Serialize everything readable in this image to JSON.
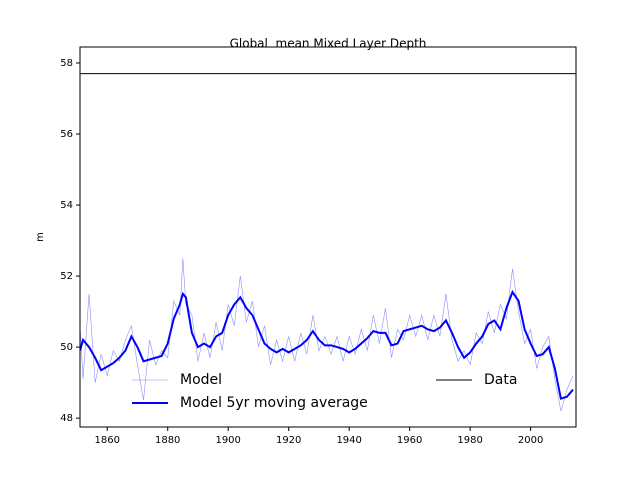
{
  "chart_data": {
    "type": "line",
    "title": "Global  mean Mixed Layer Depth",
    "y_label": "m",
    "xlim": [
      1851,
      2015
    ],
    "ylim": [
      47.75,
      58.45
    ],
    "xticks": [
      1860,
      1880,
      1900,
      1920,
      1940,
      1960,
      1980,
      2000
    ],
    "yticks": [
      48,
      50,
      52,
      54,
      56,
      58
    ],
    "series": [
      {
        "name": "Model",
        "color": "#0000ff",
        "opacity": 0.45,
        "linewidth": 0.6,
        "x": [
          1851,
          1852,
          1854,
          1856,
          1858,
          1860,
          1862,
          1864,
          1866,
          1868,
          1870,
          1872,
          1874,
          1876,
          1878,
          1880,
          1882,
          1884,
          1885,
          1886,
          1888,
          1890,
          1892,
          1894,
          1896,
          1898,
          1900,
          1902,
          1904,
          1906,
          1908,
          1910,
          1912,
          1914,
          1916,
          1918,
          1920,
          1922,
          1924,
          1926,
          1928,
          1930,
          1932,
          1934,
          1936,
          1938,
          1940,
          1942,
          1944,
          1946,
          1948,
          1950,
          1952,
          1954,
          1956,
          1958,
          1960,
          1962,
          1964,
          1966,
          1968,
          1970,
          1972,
          1974,
          1976,
          1978,
          1980,
          1982,
          1984,
          1986,
          1988,
          1990,
          1992,
          1994,
          1996,
          1998,
          2000,
          2002,
          2004,
          2006,
          2008,
          2010,
          2012,
          2014
        ],
        "values": [
          50.6,
          49.1,
          51.5,
          49.0,
          49.8,
          49.2,
          49.9,
          49.6,
          50.2,
          50.6,
          49.5,
          48.5,
          50.2,
          49.5,
          49.9,
          49.7,
          51.3,
          50.9,
          52.5,
          51.2,
          50.9,
          49.6,
          50.4,
          49.7,
          50.7,
          49.9,
          51.2,
          50.6,
          52.0,
          50.7,
          51.3,
          50.0,
          50.6,
          49.5,
          50.2,
          49.6,
          50.3,
          49.6,
          50.4,
          49.8,
          50.9,
          49.9,
          50.3,
          49.8,
          50.3,
          49.6,
          50.3,
          49.8,
          50.5,
          49.9,
          50.9,
          50.1,
          51.1,
          49.7,
          50.5,
          50.2,
          50.9,
          50.3,
          50.9,
          50.2,
          50.9,
          50.3,
          51.5,
          50.2,
          49.6,
          49.9,
          49.5,
          50.4,
          50.1,
          51.0,
          50.4,
          51.2,
          50.8,
          52.2,
          51.0,
          50.1,
          50.5,
          49.4,
          50.0,
          50.3,
          49.1,
          48.2,
          48.8,
          49.2
        ]
      },
      {
        "name": "Model 5yr moving average",
        "color": "#0000ff",
        "opacity": 1,
        "linewidth": 2,
        "x": [
          1851,
          1852,
          1854,
          1856,
          1858,
          1860,
          1862,
          1864,
          1866,
          1868,
          1870,
          1872,
          1874,
          1876,
          1878,
          1880,
          1882,
          1884,
          1885,
          1886,
          1888,
          1890,
          1892,
          1894,
          1896,
          1898,
          1900,
          1902,
          1904,
          1906,
          1908,
          1910,
          1912,
          1914,
          1916,
          1918,
          1920,
          1922,
          1924,
          1926,
          1928,
          1930,
          1932,
          1934,
          1936,
          1938,
          1940,
          1942,
          1944,
          1946,
          1948,
          1950,
          1952,
          1954,
          1956,
          1958,
          1960,
          1962,
          1964,
          1966,
          1968,
          1970,
          1972,
          1974,
          1976,
          1978,
          1980,
          1982,
          1984,
          1986,
          1988,
          1990,
          1992,
          1994,
          1996,
          1998,
          2000,
          2002,
          2004,
          2006,
          2008,
          2010,
          2012,
          2014
        ],
        "values": [
          49.9,
          50.2,
          50.0,
          49.7,
          49.35,
          49.45,
          49.55,
          49.7,
          49.9,
          50.3,
          50.0,
          49.6,
          49.65,
          49.7,
          49.75,
          50.1,
          50.8,
          51.2,
          51.5,
          51.4,
          50.4,
          50.0,
          50.1,
          50.0,
          50.3,
          50.4,
          50.9,
          51.2,
          51.4,
          51.1,
          50.9,
          50.5,
          50.1,
          49.95,
          49.85,
          49.95,
          49.85,
          49.95,
          50.05,
          50.2,
          50.45,
          50.2,
          50.05,
          50.05,
          50.0,
          49.95,
          49.85,
          49.95,
          50.1,
          50.25,
          50.45,
          50.4,
          50.4,
          50.05,
          50.1,
          50.45,
          50.5,
          50.55,
          50.6,
          50.5,
          50.45,
          50.55,
          50.75,
          50.4,
          50.0,
          49.7,
          49.85,
          50.1,
          50.3,
          50.65,
          50.75,
          50.5,
          51.1,
          51.55,
          51.3,
          50.5,
          50.1,
          49.75,
          49.8,
          50.0,
          49.4,
          48.55,
          48.6,
          48.8
        ]
      },
      {
        "name": "Data",
        "color": "#000000",
        "opacity": 1,
        "linewidth": 1,
        "x": [
          1851,
          2015
        ],
        "values": [
          57.7,
          57.7
        ]
      }
    ]
  }
}
